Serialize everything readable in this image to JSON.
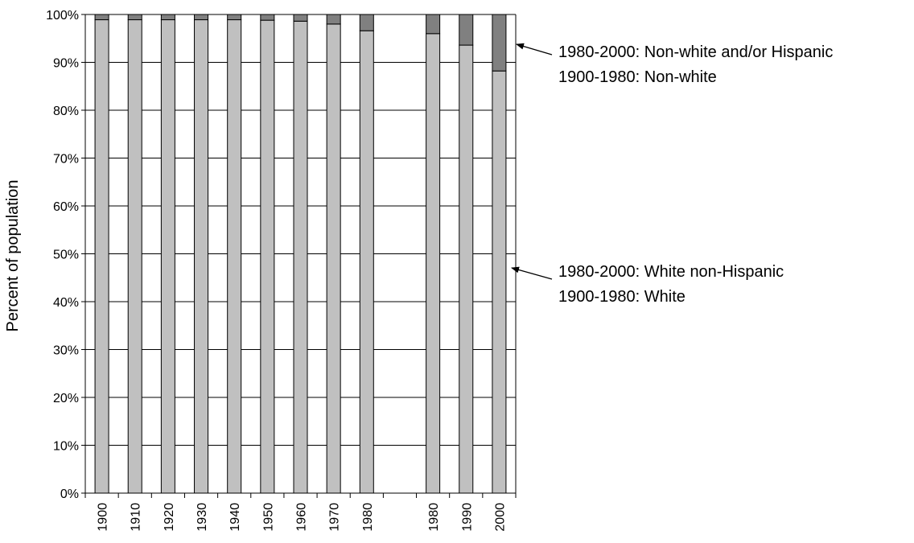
{
  "chart_data": {
    "type": "bar",
    "stacked": true,
    "categories": [
      "1900",
      "1910",
      "1920",
      "1930",
      "1940",
      "1950",
      "1960",
      "1970",
      "1980",
      "",
      "1980",
      "1990",
      "2000"
    ],
    "series": [
      {
        "color": "#c0c0c0",
        "values": [
          98.9,
          98.9,
          98.9,
          98.9,
          98.9,
          98.8,
          98.6,
          98.0,
          96.6,
          null,
          96.0,
          93.6,
          88.2
        ]
      },
      {
        "color": "#808080",
        "values": [
          1.1,
          1.1,
          1.1,
          1.1,
          1.1,
          1.2,
          1.4,
          2.0,
          3.4,
          null,
          4.0,
          6.4,
          11.8
        ]
      }
    ],
    "ylabel": "Percent of population",
    "ylim": [
      0,
      100
    ],
    "yticks": [
      "0%",
      "10%",
      "20%",
      "30%",
      "40%",
      "50%",
      "60%",
      "70%",
      "80%",
      "90%",
      "100%"
    ],
    "grid": true,
    "annotations": [
      {
        "lines": [
          "1980-2000: Non-white and/or Hispanic",
          "1900-1980: Non-white"
        ]
      },
      {
        "lines": [
          "1980-2000: White non-Hispanic",
          "1900-1980: White"
        ]
      }
    ]
  }
}
